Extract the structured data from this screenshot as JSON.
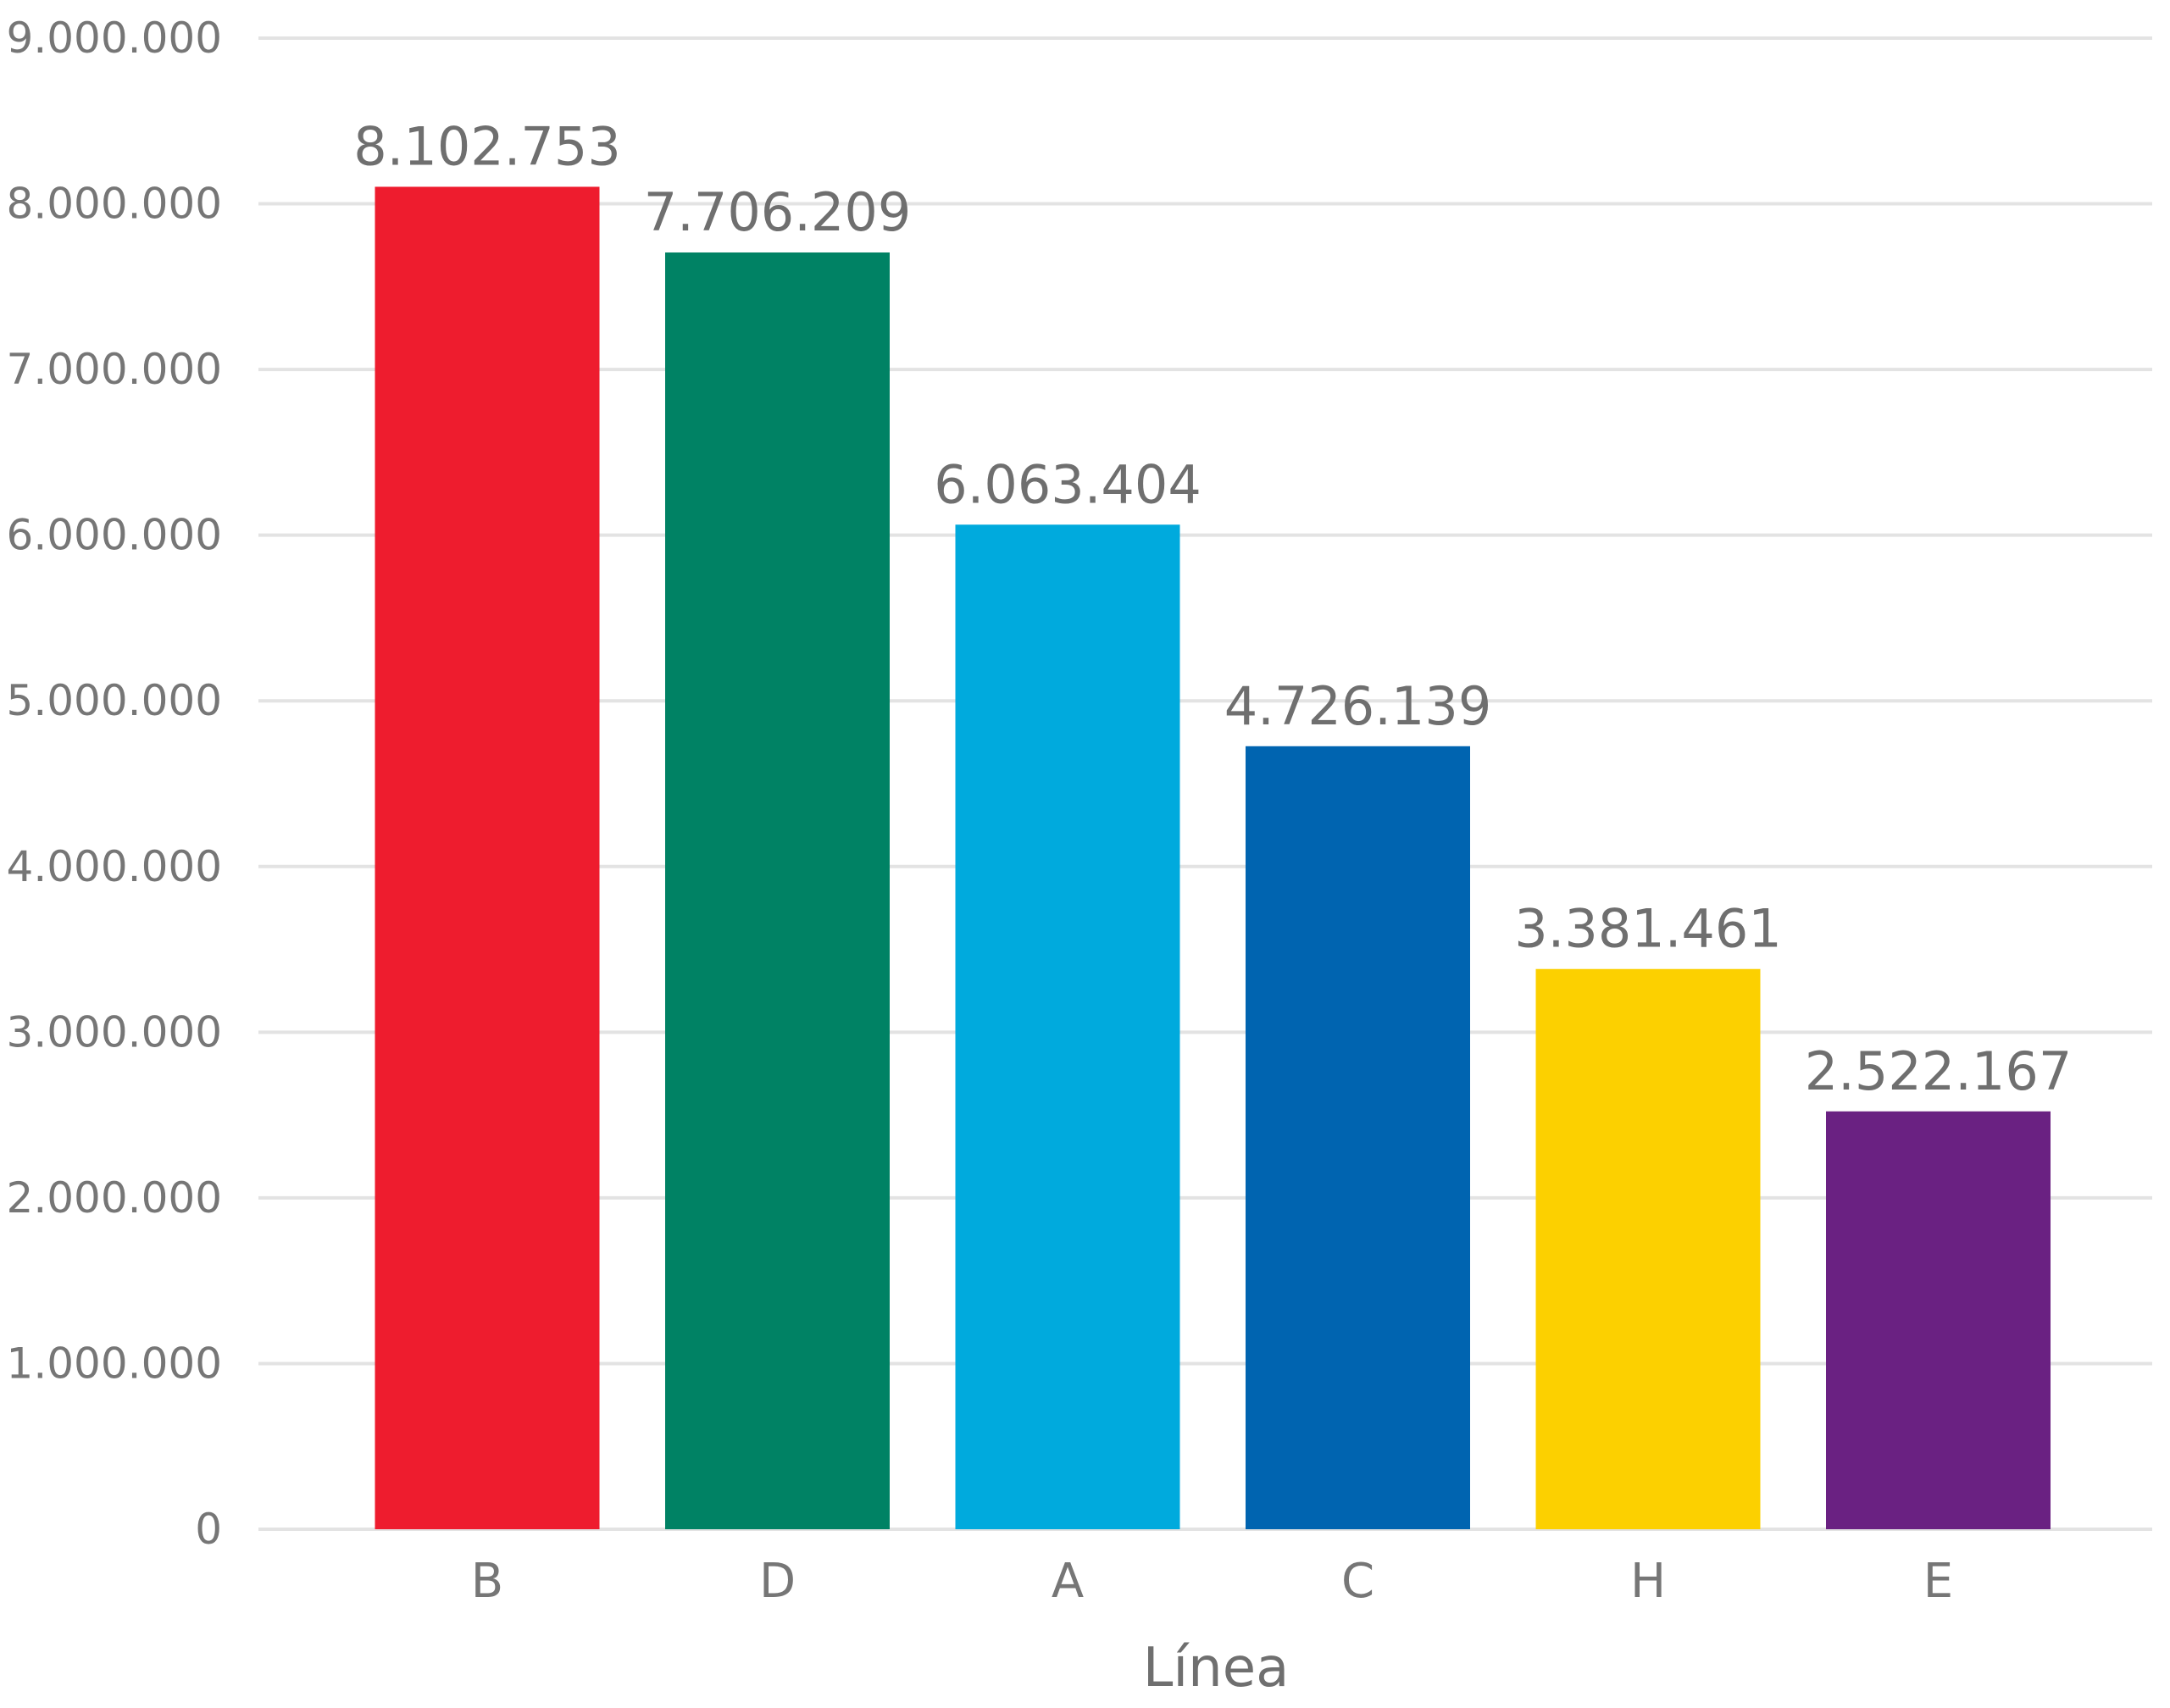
{
  "chart_data": {
    "type": "bar",
    "title": "",
    "xlabel": "Línea",
    "ylabel": "",
    "ylim": [
      0,
      9000000
    ],
    "ytick_step": 1000000,
    "yticks": [
      "0",
      "1.000.000",
      "2.000.000",
      "3.000.000",
      "4.000.000",
      "5.000.000",
      "6.000.000",
      "7.000.000",
      "8.000.000",
      "9.000.000"
    ],
    "categories": [
      "B",
      "D",
      "A",
      "C",
      "H",
      "E"
    ],
    "values": [
      8102753,
      7706209,
      6063404,
      4726139,
      3381461,
      2522167
    ],
    "value_labels": [
      "8.102.753",
      "7.706.209",
      "6.063.404",
      "4.726.139",
      "3.381.461",
      "2.522.167"
    ],
    "colors": [
      "#ee1c2e",
      "#008264",
      "#00aadd",
      "#0064b0",
      "#fcd000",
      "#6a2182"
    ],
    "grid": true,
    "legend": "none"
  }
}
